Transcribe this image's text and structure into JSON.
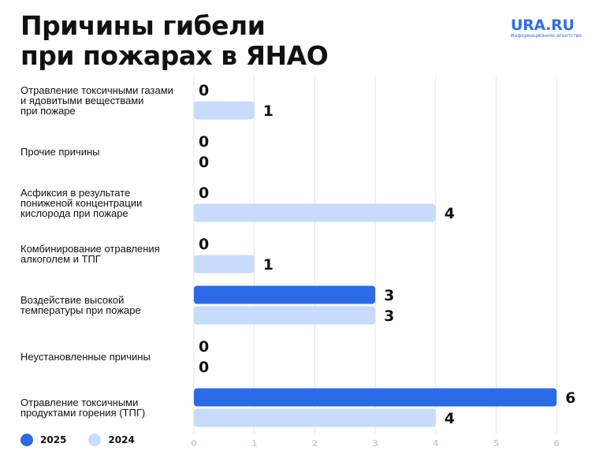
{
  "header": {
    "title_line1": "Причины гибели",
    "title_line2": "при пожарах в ЯНАО"
  },
  "brand": {
    "name": "URA.RU",
    "tagline": "Информационное агентство"
  },
  "colors": {
    "series_2025": "#2b6be8",
    "series_2024": "#c7dbfb",
    "grid": "#e3e6ec",
    "tick": "#c9d0dc",
    "brand": "#2f6cf0"
  },
  "chart_data": {
    "type": "bar",
    "orientation": "horizontal",
    "title": "Причины гибели при пожарах в ЯНАО",
    "categories": [
      [
        "Отравление токсичными газами",
        "и ядовитыми веществами",
        "при пожаре"
      ],
      [
        "Прочие причины"
      ],
      [
        "Асфиксия в результате",
        "пониженой концентрации",
        "кислорода при пожаре"
      ],
      [
        "Комбинирование отравления",
        "алкоголем и ТПГ"
      ],
      [
        "Воздействие высокой",
        "температуры при пожаре"
      ],
      [
        "Неустановленные причины"
      ],
      [
        "Отравление токсичными",
        "продуктами горения (ТПГ)"
      ]
    ],
    "series": [
      {
        "name": "2025",
        "values": [
          0,
          0,
          0,
          0,
          3,
          0,
          6
        ]
      },
      {
        "name": "2024",
        "values": [
          1,
          0,
          4,
          1,
          3,
          0,
          4
        ]
      }
    ],
    "x_ticks": [
      "0",
      "1",
      "2",
      "3",
      "4",
      "5",
      "6"
    ],
    "xlim": [
      0,
      6
    ],
    "grid": true,
    "legend": "bottom-left"
  }
}
